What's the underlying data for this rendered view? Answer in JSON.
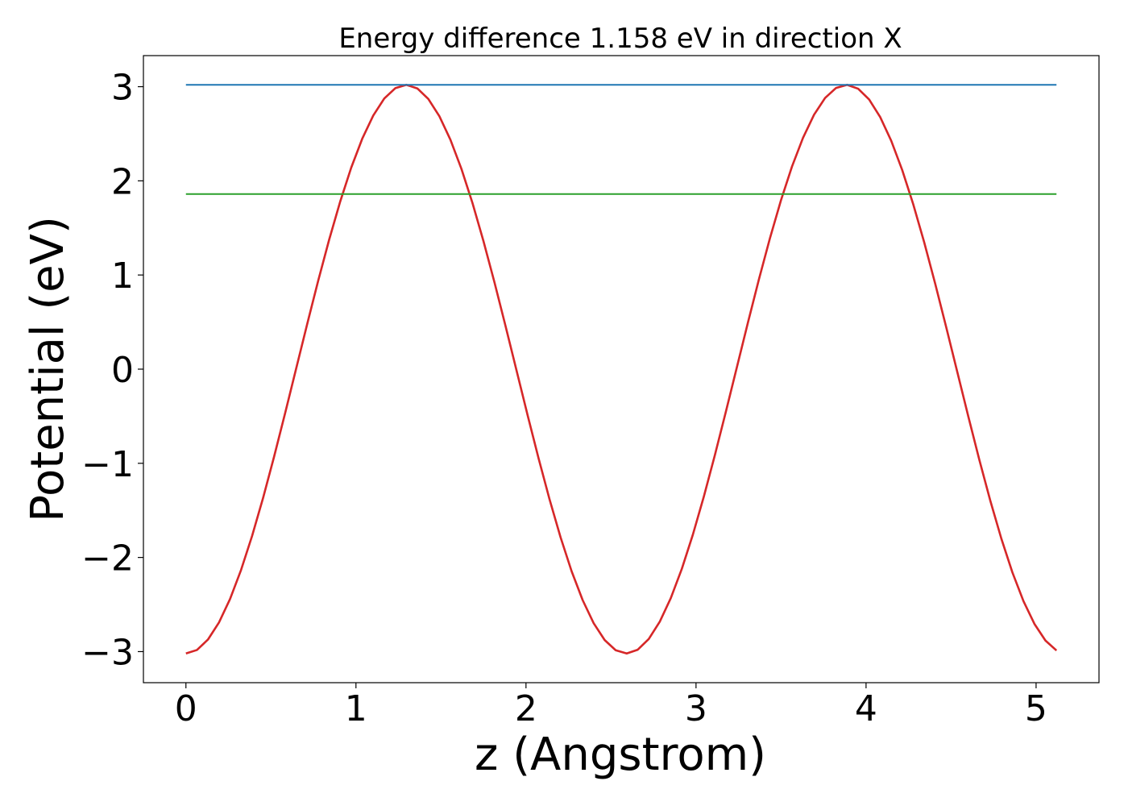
{
  "chart_data": {
    "type": "line",
    "title": "Energy difference 1.158 eV in direction X",
    "xlabel": "z (Angstrom)",
    "ylabel": "Potential (eV)",
    "xlim": [
      -0.25,
      5.37
    ],
    "ylim": [
      -3.33,
      3.33
    ],
    "xticks": [
      0,
      1,
      2,
      3,
      4,
      5
    ],
    "xtick_labels": [
      "0",
      "1",
      "2",
      "3",
      "4",
      "5"
    ],
    "yticks": [
      -3,
      -2,
      -1,
      0,
      1,
      2,
      3
    ],
    "ytick_labels": [
      "−3",
      "−2",
      "−1",
      "0",
      "1",
      "2",
      "3"
    ],
    "grid": false,
    "series": [
      {
        "color": "#d62728",
        "kind": "cosine",
        "amplitude": 3.02,
        "period": 2.59,
        "x_start": 0,
        "x_end": 5.12,
        "x_step": 0.0646
      },
      {
        "color": "#1f77b4",
        "kind": "hline",
        "y": 3.02,
        "x_start": 0,
        "x_end": 5.12
      },
      {
        "color": "#2ca02c",
        "kind": "hline",
        "y": 1.86,
        "x_start": 0,
        "x_end": 5.12
      }
    ]
  }
}
